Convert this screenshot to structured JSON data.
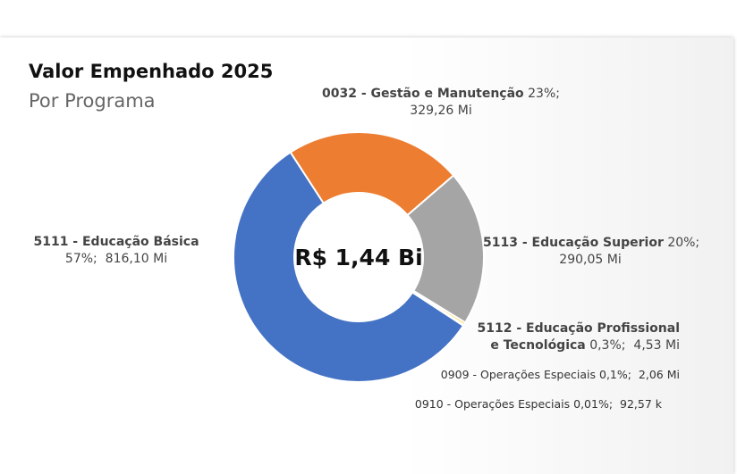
{
  "chart_data": {
    "type": "donut",
    "title": "Valor Empenhado 2025",
    "subtitle": "Por Programa",
    "center_label": "R$ 1,44 Bi",
    "categories": [
      "0032 - Gestão e Manutenção",
      "5113 - Educação Superior",
      "5112 - Educação Profissional e Tecnológica",
      "0909 - Operações Especiais",
      "0910 - Operações Especiais",
      "5111 - Educação Básica"
    ],
    "values": [
      329.26,
      290.05,
      4.53,
      2.06,
      0.09257,
      816.1
    ],
    "value_labels": [
      "329,26 Mi",
      "290,05 Mi",
      "4,53 Mi",
      "2,06 Mi",
      "92,57 k",
      "816,10 Mi"
    ],
    "percents": [
      23,
      20,
      0.3,
      0.1,
      0.01,
      57
    ],
    "percent_labels": [
      "23%;",
      "20%;",
      "0,3%;",
      "0,1%;",
      "0,01%;",
      "57%;"
    ],
    "colors": [
      "#ED7D31",
      "#A5A5A5",
      "#FFC000",
      "#5B9BD5",
      "#70AD47",
      "#4472C4"
    ]
  }
}
